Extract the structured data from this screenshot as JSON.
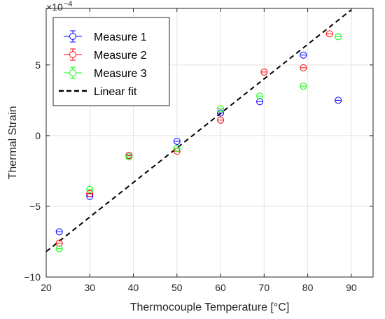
{
  "chart_data": {
    "type": "scatter",
    "xlabel": "Thermocouple Temperature [°C]",
    "ylabel": "Thermal Strain",
    "y_exponent_base": "×10",
    "y_exponent_power": "−4",
    "xlim": [
      20,
      95
    ],
    "ylim": [
      -10,
      9
    ],
    "y_scale_factor": 0.0001,
    "x_ticks": [
      20,
      30,
      40,
      50,
      60,
      70,
      80,
      90
    ],
    "y_ticks": [
      -10,
      -5,
      0,
      5
    ],
    "grid": true,
    "legend_position": "top-left",
    "series": [
      {
        "name": "Measure 1",
        "color": "#0000ff",
        "marker": "circle-with-errorbar",
        "x": [
          23,
          30,
          39,
          50,
          60,
          69,
          79,
          87
        ],
        "y": [
          -6.8,
          -4.3,
          -1.4,
          -0.4,
          1.6,
          2.4,
          5.7,
          2.5
        ]
      },
      {
        "name": "Measure 2",
        "color": "#ff0000",
        "marker": "circle-with-errorbar",
        "x": [
          23,
          30,
          39,
          50,
          60,
          70,
          79,
          85
        ],
        "y": [
          -7.6,
          -4.1,
          -1.4,
          -1.1,
          1.1,
          4.5,
          4.8,
          7.2
        ]
      },
      {
        "name": "Measure 3",
        "color": "#00ff00",
        "marker": "circle-with-errorbar",
        "x": [
          23,
          30,
          39,
          50,
          60,
          69,
          79,
          87
        ],
        "y": [
          -8.0,
          -3.8,
          -1.5,
          -0.9,
          1.9,
          2.8,
          3.5,
          7.0
        ]
      },
      {
        "name": "Linear fit",
        "color": "#000000",
        "style": "dashed-line",
        "x": [
          20,
          90
        ],
        "y": [
          -8.2,
          8.9
        ]
      }
    ]
  }
}
